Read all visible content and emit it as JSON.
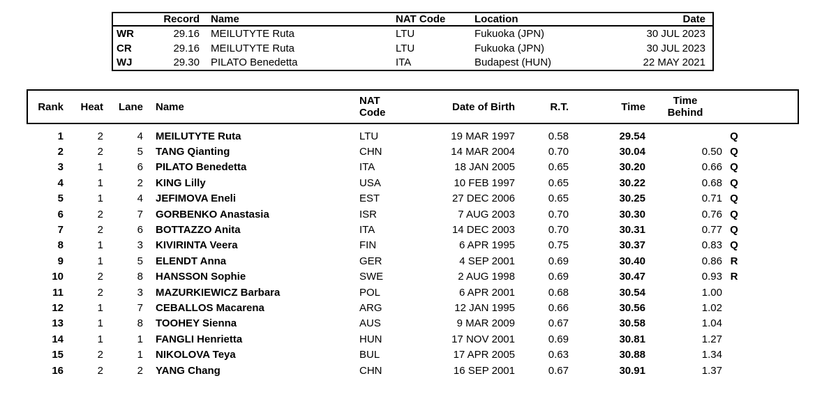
{
  "records_table": {
    "headers": {
      "record": "Record",
      "name": "Name",
      "nat_code": "NAT Code",
      "location": "Location",
      "date": "Date"
    },
    "rows": [
      {
        "label": "WR",
        "record": "29.16",
        "name": "MEILUTYTE Ruta",
        "nat": "LTU",
        "location": "Fukuoka (JPN)",
        "date": "30 JUL 2023"
      },
      {
        "label": "CR",
        "record": "29.16",
        "name": "MEILUTYTE Ruta",
        "nat": "LTU",
        "location": "Fukuoka (JPN)",
        "date": "30 JUL 2023"
      },
      {
        "label": "WJ",
        "record": "29.30",
        "name": "PILATO Benedetta",
        "nat": "ITA",
        "location": "Budapest (HUN)",
        "date": "22 MAY 2021"
      }
    ]
  },
  "results_table": {
    "headers": {
      "rank": "Rank",
      "heat": "Heat",
      "lane": "Lane",
      "name": "Name",
      "nat_code": "NAT\nCode",
      "dob": "Date of Birth",
      "rt": "R.T.",
      "time": "Time",
      "time_behind": "Time\nBehind"
    },
    "rows": [
      {
        "rank": "1",
        "heat": "2",
        "lane": "4",
        "name": "MEILUTYTE Ruta",
        "nat": "LTU",
        "dob": "19 MAR 1997",
        "rt": "0.58",
        "time": "29.54",
        "behind": "",
        "qual": "Q"
      },
      {
        "rank": "2",
        "heat": "2",
        "lane": "5",
        "name": "TANG Qianting",
        "nat": "CHN",
        "dob": "14 MAR 2004",
        "rt": "0.70",
        "time": "30.04",
        "behind": "0.50",
        "qual": "Q"
      },
      {
        "rank": "3",
        "heat": "1",
        "lane": "6",
        "name": "PILATO Benedetta",
        "nat": "ITA",
        "dob": "18 JAN 2005",
        "rt": "0.65",
        "time": "30.20",
        "behind": "0.66",
        "qual": "Q"
      },
      {
        "rank": "4",
        "heat": "1",
        "lane": "2",
        "name": "KING Lilly",
        "nat": "USA",
        "dob": "10 FEB 1997",
        "rt": "0.65",
        "time": "30.22",
        "behind": "0.68",
        "qual": "Q"
      },
      {
        "rank": "5",
        "heat": "1",
        "lane": "4",
        "name": "JEFIMOVA Eneli",
        "nat": "EST",
        "dob": "27 DEC 2006",
        "rt": "0.65",
        "time": "30.25",
        "behind": "0.71",
        "qual": "Q"
      },
      {
        "rank": "6",
        "heat": "2",
        "lane": "7",
        "name": "GORBENKO Anastasia",
        "nat": "ISR",
        "dob": "7 AUG 2003",
        "rt": "0.70",
        "time": "30.30",
        "behind": "0.76",
        "qual": "Q"
      },
      {
        "rank": "7",
        "heat": "2",
        "lane": "6",
        "name": "BOTTAZZO Anita",
        "nat": "ITA",
        "dob": "14 DEC 2003",
        "rt": "0.70",
        "time": "30.31",
        "behind": "0.77",
        "qual": "Q"
      },
      {
        "rank": "8",
        "heat": "1",
        "lane": "3",
        "name": "KIVIRINTA Veera",
        "nat": "FIN",
        "dob": "6 APR 1995",
        "rt": "0.75",
        "time": "30.37",
        "behind": "0.83",
        "qual": "Q"
      },
      {
        "rank": "9",
        "heat": "1",
        "lane": "5",
        "name": "ELENDT Anna",
        "nat": "GER",
        "dob": "4 SEP 2001",
        "rt": "0.69",
        "time": "30.40",
        "behind": "0.86",
        "qual": "R"
      },
      {
        "rank": "10",
        "heat": "2",
        "lane": "8",
        "name": "HANSSON Sophie",
        "nat": "SWE",
        "dob": "2 AUG 1998",
        "rt": "0.69",
        "time": "30.47",
        "behind": "0.93",
        "qual": "R"
      },
      {
        "rank": "11",
        "heat": "2",
        "lane": "3",
        "name": "MAZURKIEWICZ Barbara",
        "nat": "POL",
        "dob": "6 APR 2001",
        "rt": "0.68",
        "time": "30.54",
        "behind": "1.00",
        "qual": ""
      },
      {
        "rank": "12",
        "heat": "1",
        "lane": "7",
        "name": "CEBALLOS Macarena",
        "nat": "ARG",
        "dob": "12 JAN 1995",
        "rt": "0.66",
        "time": "30.56",
        "behind": "1.02",
        "qual": ""
      },
      {
        "rank": "13",
        "heat": "1",
        "lane": "8",
        "name": "TOOHEY Sienna",
        "nat": "AUS",
        "dob": "9 MAR 2009",
        "rt": "0.67",
        "time": "30.58",
        "behind": "1.04",
        "qual": ""
      },
      {
        "rank": "14",
        "heat": "1",
        "lane": "1",
        "name": "FANGLI Henrietta",
        "nat": "HUN",
        "dob": "17 NOV 2001",
        "rt": "0.69",
        "time": "30.81",
        "behind": "1.27",
        "qual": ""
      },
      {
        "rank": "15",
        "heat": "2",
        "lane": "1",
        "name": "NIKOLOVA Teya",
        "nat": "BUL",
        "dob": "17 APR 2005",
        "rt": "0.63",
        "time": "30.88",
        "behind": "1.34",
        "qual": ""
      },
      {
        "rank": "16",
        "heat": "2",
        "lane": "2",
        "name": "YANG Chang",
        "nat": "CHN",
        "dob": "16 SEP 2001",
        "rt": "0.67",
        "time": "30.91",
        "behind": "1.37",
        "qual": ""
      }
    ]
  }
}
